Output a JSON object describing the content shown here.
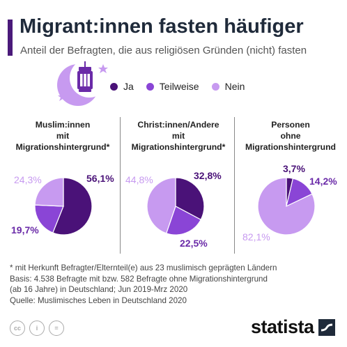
{
  "header": {
    "title": "Migrant:innen fasten häufiger",
    "subtitle": "Anteil der Befragten, die aus religiösen Gründen (nicht) fasten"
  },
  "colors": {
    "accent": "#4a1a7a",
    "ja": "#4a1278",
    "teilweise": "#8a45d6",
    "nein": "#c79af0"
  },
  "legend": [
    {
      "label": "Ja",
      "color": "#4a1278"
    },
    {
      "label": "Teilweise",
      "color": "#8a45d6"
    },
    {
      "label": "Nein",
      "color": "#c79af0"
    }
  ],
  "chart_data": [
    {
      "type": "pie",
      "title_lines": [
        "Muslim:innen",
        "mit",
        "Migrationshintergrund*"
      ],
      "slices": [
        {
          "name": "Ja",
          "value": 56.1,
          "label": "56,1%"
        },
        {
          "name": "Teilweise",
          "value": 19.7,
          "label": "19,7%"
        },
        {
          "name": "Nein",
          "value": 24.3,
          "label": "24,3%"
        }
      ]
    },
    {
      "type": "pie",
      "title_lines": [
        "Christ:innen/Andere",
        "mit",
        "Migrationshintergrund*"
      ],
      "slices": [
        {
          "name": "Ja",
          "value": 32.8,
          "label": "32,8%"
        },
        {
          "name": "Teilweise",
          "value": 22.5,
          "label": "22,5%"
        },
        {
          "name": "Nein",
          "value": 44.8,
          "label": "44,8%"
        }
      ]
    },
    {
      "type": "pie",
      "title_lines": [
        "Personen",
        "ohne",
        "Migrationshintergrund"
      ],
      "slices": [
        {
          "name": "Ja",
          "value": 3.7,
          "label": "3,7%"
        },
        {
          "name": "Teilweise",
          "value": 14.2,
          "label": "14,2%"
        },
        {
          "name": "Nein",
          "value": 82.1,
          "label": "82,1%"
        }
      ]
    }
  ],
  "footnote": {
    "line1": "* mit Herkunft Befragter/Elternteil(e) aus 23 muslimisch geprägten Ländern",
    "line2": "Basis: 4.538 Befragte mit bzw. 582 Befragte ohne Migrationshintergrund",
    "line3": "(ab 16 Jahre) in Deutschland; Jun 2019-Mrz 2020",
    "line4": "Quelle: Muslimisches Leben in Deutschland 2020"
  },
  "license_icons": [
    "cc",
    "i",
    "="
  ],
  "brand": "statista"
}
